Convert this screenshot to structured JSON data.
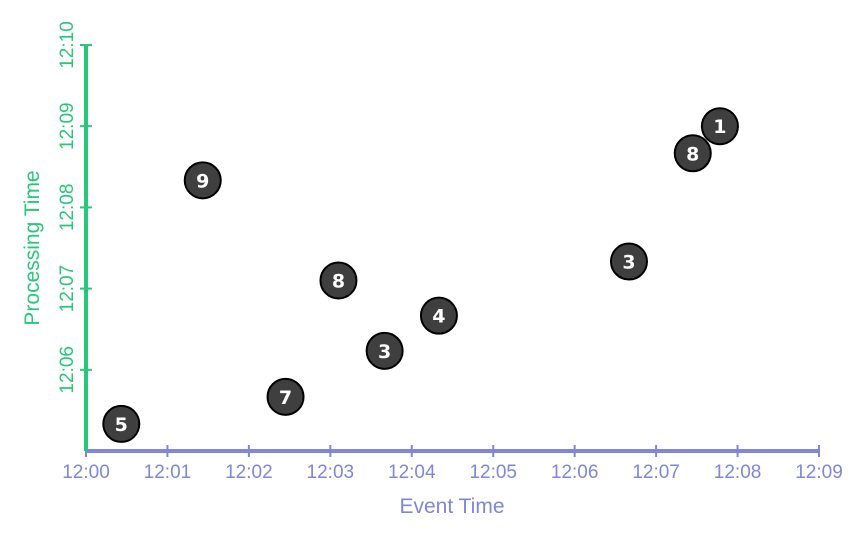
{
  "chart_data": {
    "type": "scatter",
    "title": "",
    "xlabel": "Event Time",
    "ylabel": "Processing Time",
    "x_ticks": [
      "12:00",
      "12:01",
      "12:02",
      "12:03",
      "12:04",
      "12:05",
      "12:06",
      "12:07",
      "12:08",
      "12:09"
    ],
    "y_ticks": [
      "12:06",
      "12:07",
      "12:08",
      "12:09",
      "12:10"
    ],
    "xlim": [
      "12:00",
      "12:09"
    ],
    "ylim": [
      "12:05",
      "12:10"
    ],
    "points": [
      {
        "event_time": "12:00:26",
        "processing_time": "12:05:20",
        "value": "5"
      },
      {
        "event_time": "12:01:26",
        "processing_time": "12:08:20",
        "value": "9"
      },
      {
        "event_time": "12:02:27",
        "processing_time": "12:05:40",
        "value": "7"
      },
      {
        "event_time": "12:03:06",
        "processing_time": "12:07:06",
        "value": "8"
      },
      {
        "event_time": "12:03:40",
        "processing_time": "12:06:14",
        "value": "3"
      },
      {
        "event_time": "12:04:20",
        "processing_time": "12:06:40",
        "value": "4"
      },
      {
        "event_time": "12:06:40",
        "processing_time": "12:07:20",
        "value": "3"
      },
      {
        "event_time": "12:07:27",
        "processing_time": "12:08:40",
        "value": "8"
      },
      {
        "event_time": "12:07:47",
        "processing_time": "12:09:00",
        "value": "1"
      }
    ],
    "grid": false,
    "legend": "none",
    "colors": {
      "x_axis": "#7f87d8",
      "y_axis": "#27c87a",
      "point_fill": "#3f3f3f",
      "point_stroke": "#000000",
      "point_text": "#ffffff"
    }
  }
}
